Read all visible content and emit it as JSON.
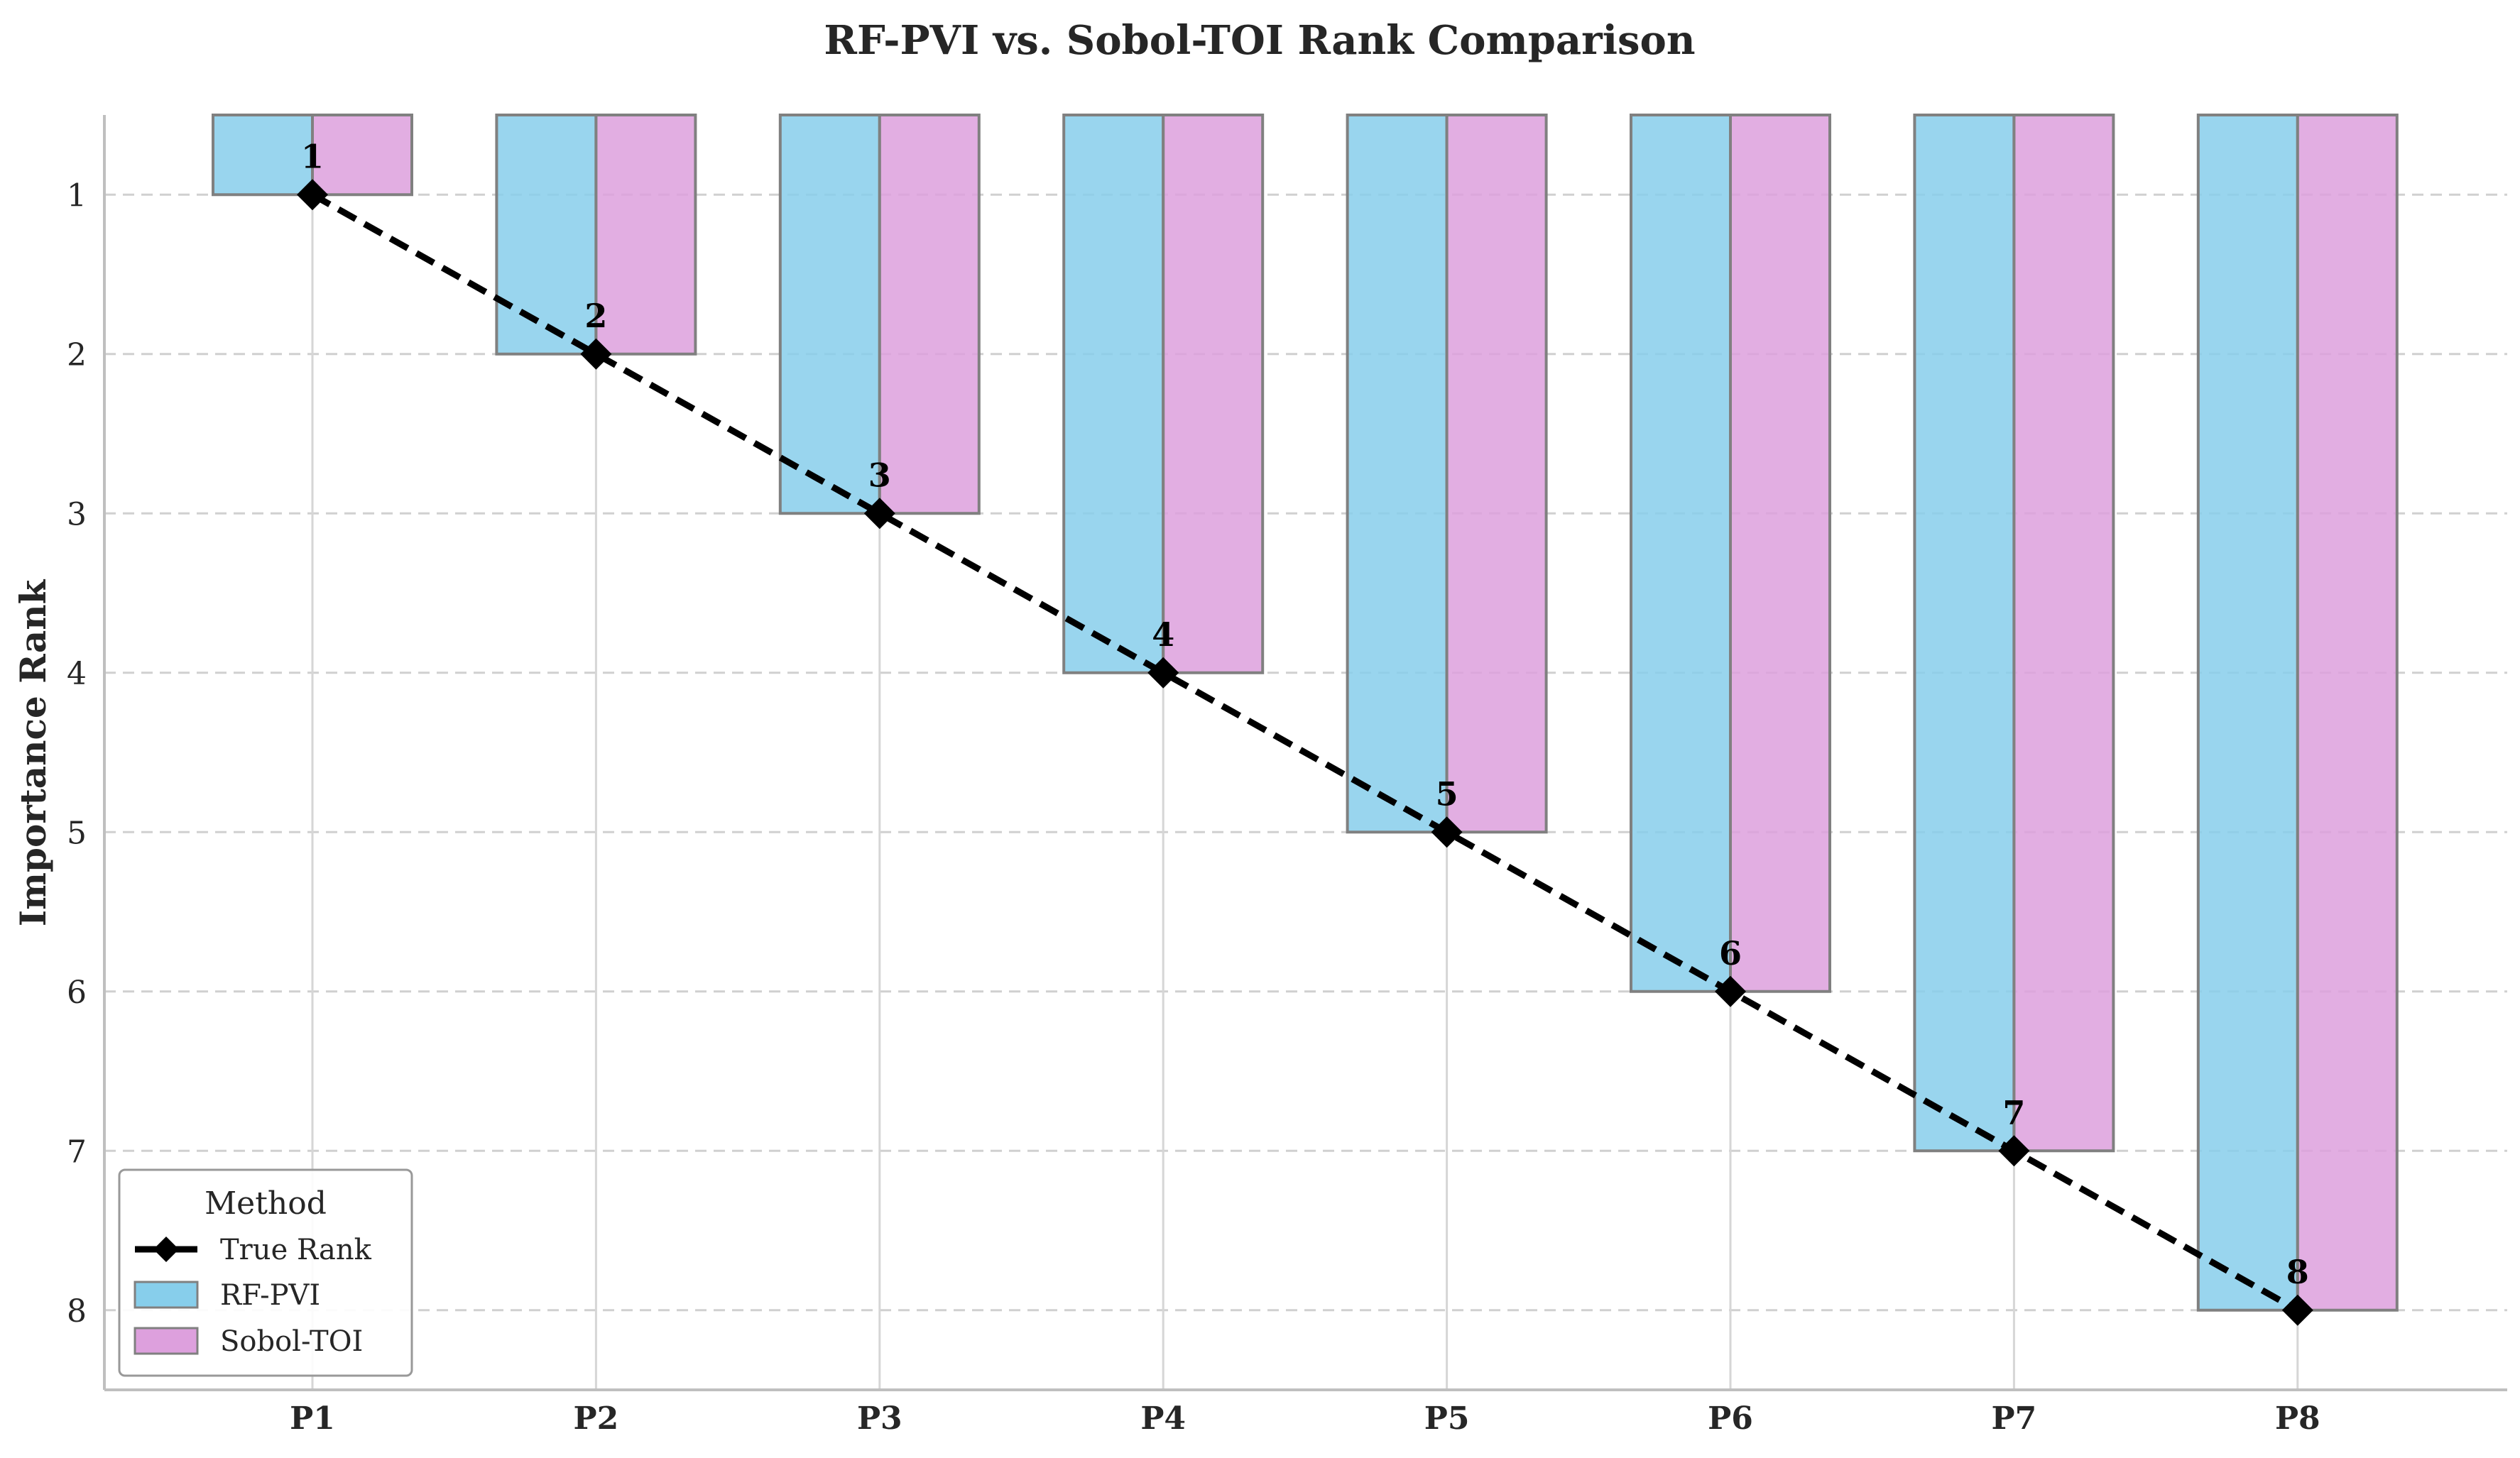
{
  "chart_data": {
    "type": "bar",
    "title": "RF-PVI vs. Sobol-TOI Rank Comparison",
    "xlabel": "",
    "ylabel": "Importance Rank",
    "categories": [
      "P1",
      "P2",
      "P3",
      "P4",
      "P5",
      "P6",
      "P7",
      "P8"
    ],
    "ylim": [
      8.5,
      0.5
    ],
    "y_inverted": true,
    "yticks": [
      1,
      2,
      3,
      4,
      5,
      6,
      7,
      8
    ],
    "grid": "y-dashed",
    "series": [
      {
        "name": "RF-PVI",
        "kind": "bar",
        "color": "#87CEEB",
        "values": [
          1,
          2,
          3,
          4,
          5,
          6,
          7,
          8
        ]
      },
      {
        "name": "Sobol-TOI",
        "kind": "bar",
        "color": "#DDA0DD",
        "values": [
          1,
          2,
          3,
          4,
          5,
          6,
          7,
          8
        ]
      },
      {
        "name": "True Rank",
        "kind": "line",
        "style": "dashed",
        "marker": "diamond",
        "color": "#000000",
        "values": [
          1,
          2,
          3,
          4,
          5,
          6,
          7,
          8
        ]
      }
    ],
    "data_labels": [
      "1",
      "2",
      "3",
      "4",
      "5",
      "6",
      "7",
      "8"
    ],
    "legend": {
      "title": "Method",
      "placement": "bottom-left",
      "entries": [
        "True Rank",
        "RF-PVI",
        "Sobol-TOI"
      ]
    }
  }
}
